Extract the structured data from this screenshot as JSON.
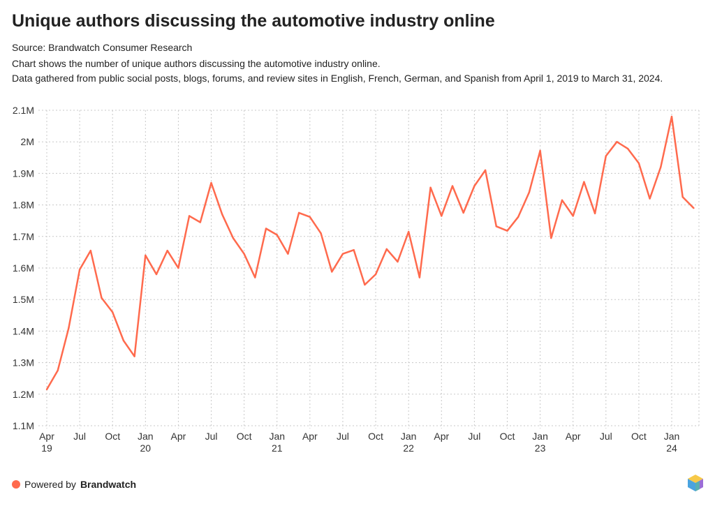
{
  "chart_data": {
    "type": "line",
    "title": "Unique authors discussing the automotive industry online",
    "source": "Source: Brandwatch Consumer Research",
    "description_lines": [
      "Chart shows the number of unique authors discussing the automotive industry online.",
      "Data gathered from public social posts, blogs, forums, and review sites in English, French, German, and Spanish from April 1, 2019 to March 31, 2024."
    ],
    "xlabel": "",
    "ylabel": "",
    "ylim": [
      1100000,
      2100000
    ],
    "y_ticks": [
      1100000,
      1200000,
      1300000,
      1400000,
      1500000,
      1600000,
      1700000,
      1800000,
      1900000,
      2000000,
      2100000
    ],
    "y_tick_labels": [
      "1.1M",
      "1.2M",
      "1.3M",
      "1.4M",
      "1.5M",
      "1.6M",
      "1.7M",
      "1.8M",
      "1.9M",
      "2M",
      "2.1M"
    ],
    "x_ticks": [
      {
        "month_index": 0,
        "label": "Apr",
        "year": "19"
      },
      {
        "month_index": 3,
        "label": "Jul",
        "year": ""
      },
      {
        "month_index": 6,
        "label": "Oct",
        "year": ""
      },
      {
        "month_index": 9,
        "label": "Jan",
        "year": "20"
      },
      {
        "month_index": 12,
        "label": "Apr",
        "year": ""
      },
      {
        "month_index": 15,
        "label": "Jul",
        "year": ""
      },
      {
        "month_index": 18,
        "label": "Oct",
        "year": ""
      },
      {
        "month_index": 21,
        "label": "Jan",
        "year": "21"
      },
      {
        "month_index": 24,
        "label": "Apr",
        "year": ""
      },
      {
        "month_index": 27,
        "label": "Jul",
        "year": ""
      },
      {
        "month_index": 30,
        "label": "Oct",
        "year": ""
      },
      {
        "month_index": 33,
        "label": "Jan",
        "year": "22"
      },
      {
        "month_index": 36,
        "label": "Apr",
        "year": ""
      },
      {
        "month_index": 39,
        "label": "Jul",
        "year": ""
      },
      {
        "month_index": 42,
        "label": "Oct",
        "year": ""
      },
      {
        "month_index": 45,
        "label": "Jan",
        "year": "23"
      },
      {
        "month_index": 48,
        "label": "Apr",
        "year": ""
      },
      {
        "month_index": 51,
        "label": "Jul",
        "year": ""
      },
      {
        "month_index": 54,
        "label": "Oct",
        "year": ""
      },
      {
        "month_index": 57,
        "label": "Jan",
        "year": "24"
      }
    ],
    "grid": true,
    "legend": "none",
    "series": [
      {
        "name": "Unique authors",
        "color": "#ff6a4d",
        "x_start": "2019-04",
        "values": [
          1215000,
          1275000,
          1410000,
          1595000,
          1655000,
          1505000,
          1460000,
          1370000,
          1320000,
          1640000,
          1580000,
          1655000,
          1600000,
          1765000,
          1745000,
          1870000,
          1770000,
          1695000,
          1645000,
          1570000,
          1725000,
          1705000,
          1645000,
          1775000,
          1762000,
          1710000,
          1588000,
          1645000,
          1657000,
          1547000,
          1580000,
          1660000,
          1620000,
          1715000,
          1570000,
          1855000,
          1765000,
          1860000,
          1775000,
          1860000,
          1910000,
          1732000,
          1718000,
          1762000,
          1840000,
          1972000,
          1695000,
          1815000,
          1765000,
          1873000,
          1773000,
          1955000,
          2000000,
          1978000,
          1932000,
          1820000,
          1920000,
          2080000,
          1825000,
          1790000
        ]
      }
    ]
  },
  "footer": {
    "powered_by": "Powered by",
    "brand": "Brandwatch"
  }
}
